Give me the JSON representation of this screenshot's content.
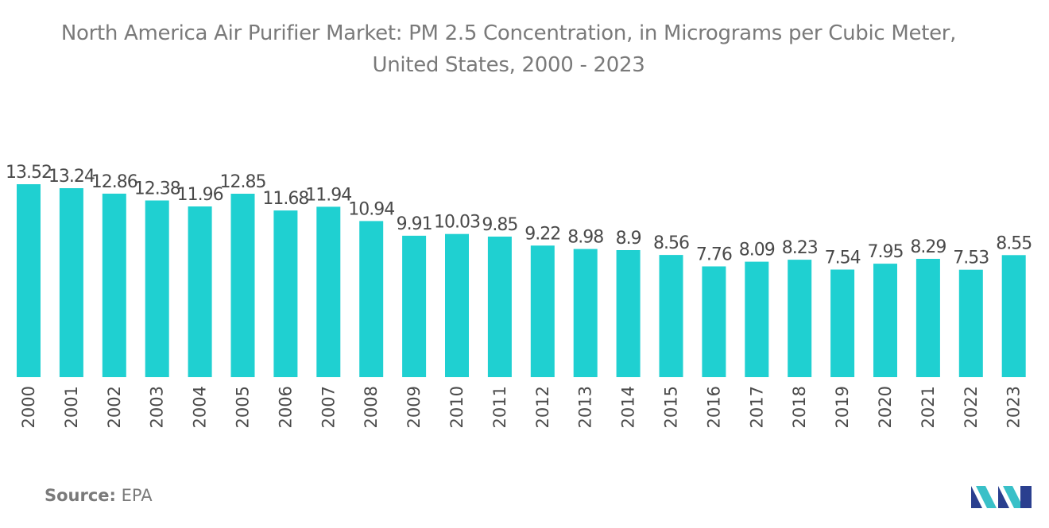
{
  "chart_data": {
    "type": "bar",
    "title_line1": "North America Air Purifier Market: PM 2.5 Concentration, in Micrograms per Cubic Meter,",
    "title_line2": "United States, 2000 - 2023",
    "xlabel": "",
    "ylabel": "",
    "categories": [
      "2000",
      "2001",
      "2002",
      "2003",
      "2004",
      "2005",
      "2006",
      "2007",
      "2008",
      "2009",
      "2010",
      "2011",
      "2012",
      "2013",
      "2014",
      "2015",
      "2016",
      "2017",
      "2018",
      "2019",
      "2020",
      "2021",
      "2022",
      "2023"
    ],
    "values": [
      13.52,
      13.24,
      12.86,
      12.38,
      11.96,
      12.85,
      11.68,
      11.94,
      10.94,
      9.91,
      10.03,
      9.85,
      9.22,
      8.98,
      8.9,
      8.56,
      7.76,
      8.09,
      8.23,
      7.54,
      7.95,
      8.29,
      7.53,
      8.55
    ],
    "value_labels": [
      "13.52",
      "13.24",
      "12.86",
      "12.38",
      "11.96",
      "12.85",
      "11.68",
      "11.94",
      "10.94",
      "9.91",
      "10.03",
      "9.85",
      "9.22",
      "8.98",
      "8.9",
      "8.56",
      "7.76",
      "8.09",
      "8.23",
      "7.54",
      "7.95",
      "8.29",
      "7.53",
      "8.55"
    ],
    "ylim": [
      0,
      13.52
    ],
    "grid": false,
    "legend": "none",
    "bar_color": "#1fd0d1"
  },
  "source": {
    "label": "Source:",
    "value": "EPA"
  },
  "logo": {
    "icon": "mordor-intelligence-logo-icon",
    "colors": [
      "#2a3f8f",
      "#39c0c8"
    ]
  }
}
